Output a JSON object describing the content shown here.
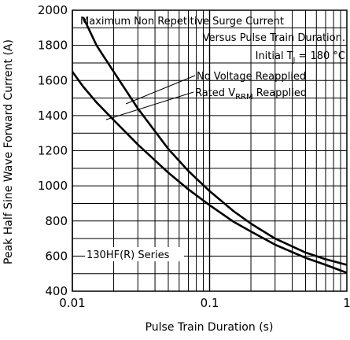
{
  "chart_data": {
    "type": "line",
    "xscale": "log",
    "xlim": [
      0.01,
      1
    ],
    "ylim": [
      400,
      2000
    ],
    "grid": true,
    "xlabel": "Pulse Train Duration (s)",
    "ylabel": "Peak Half Sine Wave Forward Current (A)",
    "xtick_labels": [
      {
        "value": 0.01,
        "label": "0.01"
      },
      {
        "value": 0.1,
        "label": "0.1"
      },
      {
        "value": 1,
        "label": "1"
      }
    ],
    "ytick_labels": [
      400,
      600,
      800,
      1000,
      1200,
      1400,
      1600,
      1800,
      2000
    ],
    "annotations": {
      "title_line1": "Maximum Non Repetitive Surge Current",
      "title_line2": "Versus Pulse Train Duration.",
      "title_line3_prefix": "Initial T",
      "title_line3_sub": "J",
      "title_line3_suffix": " = 180 °C",
      "curve1_label": "No Voltage Reapplied",
      "curve2_prefix": "Rated V",
      "curve2_sub": "RRM",
      "curve2_suffix": " Reapplied",
      "series_label": "130HF(R) Series"
    },
    "series": [
      {
        "x": [
          0.012,
          0.015,
          0.02,
          0.03,
          0.05,
          0.07,
          0.1,
          0.15,
          0.2,
          0.3,
          0.5,
          0.7,
          1.0
        ],
        "y": [
          1960,
          1800,
          1650,
          1440,
          1210,
          1085,
          970,
          855,
          785,
          700,
          620,
          582,
          550
        ]
      },
      {
        "x": [
          0.01,
          0.012,
          0.015,
          0.02,
          0.03,
          0.05,
          0.07,
          0.1,
          0.15,
          0.2,
          0.3,
          0.5,
          0.7,
          1.0
        ],
        "y": [
          1650,
          1565,
          1475,
          1375,
          1235,
          1075,
          980,
          890,
          795,
          740,
          665,
          590,
          550,
          505
        ]
      }
    ],
    "colors": {
      "line": "#000000",
      "grid": "#000000",
      "background": "#ffffff"
    }
  }
}
